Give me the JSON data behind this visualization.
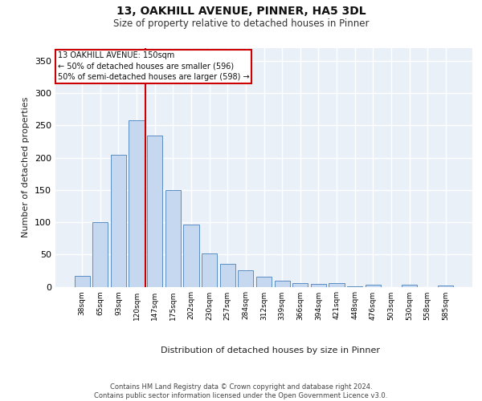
{
  "title_line1": "13, OAKHILL AVENUE, PINNER, HA5 3DL",
  "title_line2": "Size of property relative to detached houses in Pinner",
  "xlabel": "Distribution of detached houses by size in Pinner",
  "ylabel": "Number of detached properties",
  "bar_labels": [
    "38sqm",
    "65sqm",
    "93sqm",
    "120sqm",
    "147sqm",
    "175sqm",
    "202sqm",
    "230sqm",
    "257sqm",
    "284sqm",
    "312sqm",
    "339sqm",
    "366sqm",
    "394sqm",
    "421sqm",
    "448sqm",
    "476sqm",
    "503sqm",
    "530sqm",
    "558sqm",
    "585sqm"
  ],
  "bar_values": [
    17,
    100,
    205,
    258,
    235,
    150,
    96,
    52,
    35,
    26,
    15,
    9,
    5,
    4,
    5,
    1,
    3,
    0,
    3,
    0,
    2
  ],
  "bar_color": "#c5d8f0",
  "bar_edgecolor": "#5b8ec4",
  "vline_xi": 4,
  "vline_color": "#cc0000",
  "annotation_text": "13 OAKHILL AVENUE: 150sqm\n← 50% of detached houses are smaller (596)\n50% of semi-detached houses are larger (598) →",
  "annotation_box_edgecolor": "#cc0000",
  "annotation_box_facecolor": "#ffffff",
  "footer_text": "Contains HM Land Registry data © Crown copyright and database right 2024.\nContains public sector information licensed under the Open Government Licence v3.0.",
  "ylim": [
    0,
    370
  ],
  "yticks": [
    0,
    50,
    100,
    150,
    200,
    250,
    300,
    350
  ],
  "plot_bg_color": "#eaf0f8"
}
